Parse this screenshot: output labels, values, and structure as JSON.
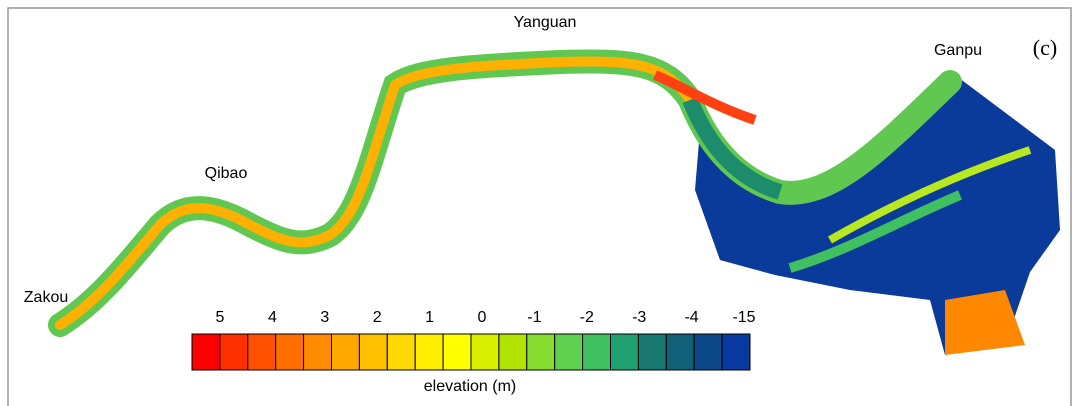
{
  "panel_label": "(c)",
  "places": [
    "Yanguan",
    "Ganpu",
    "Qibao",
    "Zakou"
  ],
  "legend": {
    "title": "elevation (m)",
    "ticks": [
      "5",
      "4",
      "3",
      "2",
      "1",
      "0",
      "-1",
      "-2",
      "-3",
      "-4",
      "-15"
    ],
    "colors": [
      "#ff0000",
      "#ff3000",
      "#ff5200",
      "#ff7000",
      "#ff8c00",
      "#ffa800",
      "#ffc000",
      "#ffd800",
      "#ffee00",
      "#ffff00",
      "#d8f000",
      "#b0e400",
      "#88dc30",
      "#60d050",
      "#40c060",
      "#20a070",
      "#187870",
      "#126078",
      "#0c4888",
      "#0838a0"
    ]
  }
}
